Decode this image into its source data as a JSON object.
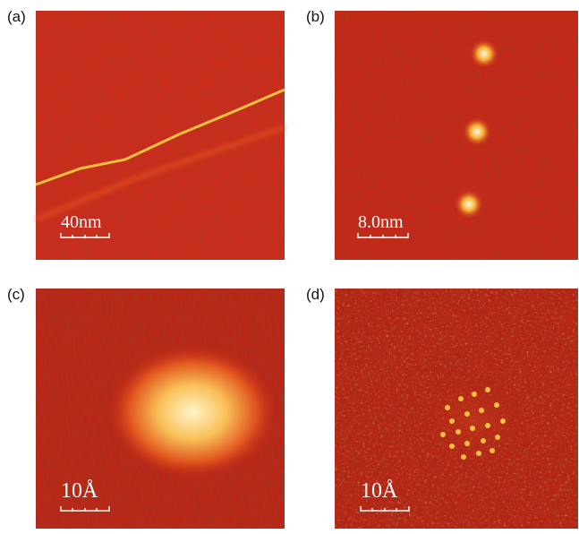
{
  "panels": [
    {
      "label": "(a)",
      "scale": "40nm"
    },
    {
      "label": "(b)",
      "scale": "8.0nm"
    },
    {
      "label": "(c)",
      "scale": "10Å"
    },
    {
      "label": "(d)",
      "scale": "10Å"
    }
  ]
}
